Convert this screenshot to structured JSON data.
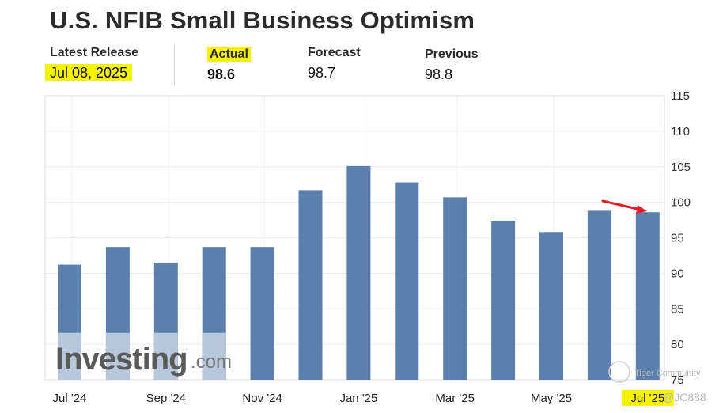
{
  "header": {
    "title": "U.S. NFIB Small Business Optimism",
    "latest_release_label": "Latest Release",
    "latest_release_value": "Jul 08, 2025",
    "actual_label": "Actual",
    "actual_value": "98.6",
    "forecast_label": "Forecast",
    "forecast_value": "98.7",
    "previous_label": "Previous",
    "previous_value": "98.8"
  },
  "watermark": {
    "brand": "Investing",
    "brand_suffix": ".com",
    "community": "Tiger Community",
    "user": "@JC888"
  },
  "colors": {
    "bar": "#5b80ad",
    "bar_light": "#b7c7dc",
    "highlight": "#f6f200",
    "arrow": "#e31e24",
    "actual": "#d0021b"
  },
  "chart_data": {
    "type": "bar",
    "title": "",
    "xlabel": "",
    "ylabel": "",
    "categories": [
      "Jul '24",
      "Aug '24",
      "Sep '24",
      "Oct '24",
      "Nov '24",
      "Dec '24",
      "Jan '25",
      "Feb '25",
      "Mar '25",
      "Apr '25",
      "May '25",
      "Jun '25",
      "Jul '25"
    ],
    "x_tick_labels": [
      "Jul '24",
      "Sep '24",
      "Nov '24",
      "Jan '25",
      "Mar '25",
      "May '25",
      "Jul '25"
    ],
    "values": [
      91.2,
      93.7,
      91.5,
      93.7,
      93.7,
      101.7,
      105.1,
      102.8,
      100.7,
      97.4,
      95.8,
      98.8,
      98.6
    ],
    "ylim": [
      75,
      115
    ],
    "y_ticks": [
      75,
      80,
      85,
      90,
      95,
      100,
      105,
      110,
      115
    ],
    "y_axis_side": "right",
    "grid": true,
    "annotations": [
      "red arrow pointing to the latest bar (Jul '25)"
    ]
  }
}
